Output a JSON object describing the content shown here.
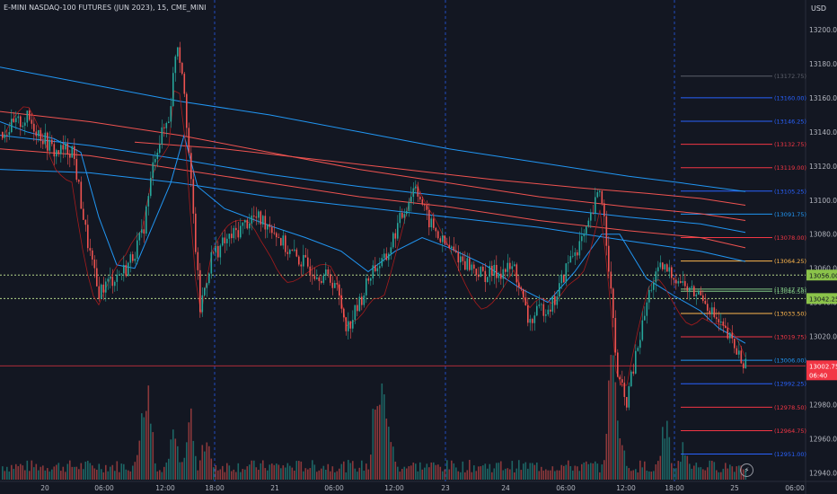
{
  "header": {
    "title": "E-MINI NASDAQ-100 FUTURES (JUN 2023), 15, CME_MINI",
    "currency": "USD"
  },
  "chart_data": {
    "type": "candlestick",
    "symbol": "E-MINI NASDAQ-100 FUTURES (JUN 2023)",
    "interval": "15",
    "exchange": "CME_MINI",
    "ylim": [
      12936,
      13210
    ],
    "price_ticks": [
      13200.0,
      13180.0,
      13160.0,
      13140.0,
      13120.0,
      13100.0,
      13080.0,
      13060.0,
      13040.0,
      13020.0,
      13000.0,
      12980.0,
      12960.0,
      12940.0
    ],
    "time_ticks": [
      "20",
      "06:00",
      "12:00",
      "18:00",
      "21",
      "06:00",
      "12:00",
      "23",
      "24",
      "06:00",
      "12:00",
      "18:00",
      "25",
      "06:00"
    ],
    "session_separators": [
      "18:00",
      "23",
      "18:00"
    ],
    "horizontal_levels": [
      {
        "label": "(13172.75)",
        "price": 13172.75,
        "color": "#5d606b"
      },
      {
        "label": "(13160.00)",
        "price": 13160.0,
        "color": "#2962ff"
      },
      {
        "label": "(13146.25)",
        "price": 13146.25,
        "color": "#2962ff"
      },
      {
        "label": "(13132.75)",
        "price": 13132.75,
        "color": "#f23645"
      },
      {
        "label": "(13119.00)",
        "price": 13119.0,
        "color": "#f23645"
      },
      {
        "label": "(13105.25)",
        "price": 13105.25,
        "color": "#2962ff"
      },
      {
        "label": "(13091.75)",
        "price": 13091.75,
        "color": "#2196f3"
      },
      {
        "label": "(13078.00)",
        "price": 13078.0,
        "color": "#f23645"
      },
      {
        "label": "(13064.25)",
        "price": 13064.25,
        "color": "#ffb74d"
      },
      {
        "label": "(13047.75)",
        "price": 13047.75,
        "color": "#81c784"
      },
      {
        "label": "(13046.50)",
        "price": 13046.5,
        "color": "#81c784"
      },
      {
        "label": "(13033.50)",
        "price": 13033.5,
        "color": "#ffb74d"
      },
      {
        "label": "(13019.75)",
        "price": 13019.75,
        "color": "#f23645"
      },
      {
        "label": "(13006.00)",
        "price": 13006.0,
        "color": "#2196f3"
      },
      {
        "label": "(12992.25)",
        "price": 12992.25,
        "color": "#2962ff"
      },
      {
        "label": "(12978.50)",
        "price": 12978.5,
        "color": "#f23645"
      },
      {
        "label": "(12964.75)",
        "price": 12964.75,
        "color": "#f23645"
      },
      {
        "label": "(12951.00)",
        "price": 12951.0,
        "color": "#2962ff"
      }
    ],
    "dotted_levels": [
      {
        "label": "13056.00",
        "price": 13056.0,
        "color": "#b5d68a"
      },
      {
        "label": "13042.25",
        "price": 13042.25,
        "color": "#b5d68a"
      }
    ],
    "last_price": {
      "label": "13002.75",
      "countdown": "06:40",
      "price": 13002.75,
      "color": "#f23645"
    },
    "moving_averages": [
      {
        "color": "#2196f3",
        "points": [
          [
            0,
            13178
          ],
          [
            60,
            13172
          ],
          [
            120,
            13166
          ],
          [
            200,
            13158
          ],
          [
            300,
            13150
          ],
          [
            400,
            13140
          ],
          [
            500,
            13130
          ],
          [
            600,
            13122
          ],
          [
            700,
            13114
          ],
          [
            760,
            13110
          ],
          [
            830,
            13105
          ]
        ]
      },
      {
        "color": "#ef5350",
        "points": [
          [
            150,
            13134
          ],
          [
            250,
            13130
          ],
          [
            350,
            13124
          ],
          [
            450,
            13118
          ],
          [
            550,
            13112
          ],
          [
            650,
            13107
          ],
          [
            720,
            13104
          ],
          [
            780,
            13101
          ],
          [
            830,
            13097
          ]
        ]
      },
      {
        "color": "#ef5350",
        "points": [
          [
            0,
            13152
          ],
          [
            100,
            13146
          ],
          [
            200,
            13138
          ],
          [
            300,
            13128
          ],
          [
            400,
            13118
          ],
          [
            500,
            13110
          ],
          [
            600,
            13102
          ],
          [
            700,
            13096
          ],
          [
            780,
            13092
          ],
          [
            830,
            13088
          ]
        ]
      },
      {
        "color": "#2196f3",
        "points": [
          [
            0,
            13138
          ],
          [
            100,
            13132
          ],
          [
            200,
            13124
          ],
          [
            300,
            13115
          ],
          [
            400,
            13108
          ],
          [
            500,
            13102
          ],
          [
            600,
            13096
          ],
          [
            700,
            13090
          ],
          [
            780,
            13086
          ],
          [
            830,
            13081
          ]
        ]
      },
      {
        "color": "#ef5350",
        "points": [
          [
            0,
            13130
          ],
          [
            100,
            13126
          ],
          [
            200,
            13118
          ],
          [
            300,
            13110
          ],
          [
            400,
            13102
          ],
          [
            500,
            13096
          ],
          [
            600,
            13088
          ],
          [
            700,
            13082
          ],
          [
            780,
            13078
          ],
          [
            830,
            13072
          ]
        ]
      },
      {
        "color": "#2196f3",
        "points": [
          [
            0,
            13118
          ],
          [
            100,
            13116
          ],
          [
            200,
            13110
          ],
          [
            300,
            13102
          ],
          [
            400,
            13096
          ],
          [
            500,
            13090
          ],
          [
            600,
            13084
          ],
          [
            700,
            13076
          ],
          [
            780,
            13070
          ],
          [
            830,
            13064
          ]
        ]
      },
      {
        "color": "#2196f3",
        "points": [
          [
            0,
            13146
          ],
          [
            30,
            13140
          ],
          [
            60,
            13136
          ],
          [
            90,
            13128
          ],
          [
            110,
            13090
          ],
          [
            130,
            13062
          ],
          [
            150,
            13060
          ],
          [
            170,
            13085
          ],
          [
            190,
            13110
          ],
          [
            205,
            13138
          ],
          [
            220,
            13108
          ],
          [
            250,
            13095
          ],
          [
            300,
            13085
          ],
          [
            340,
            13078
          ],
          [
            380,
            13070
          ],
          [
            410,
            13058
          ],
          [
            440,
            13070
          ],
          [
            470,
            13078
          ],
          [
            500,
            13072
          ],
          [
            540,
            13062
          ],
          [
            580,
            13048
          ],
          [
            610,
            13040
          ],
          [
            640,
            13058
          ],
          [
            670,
            13080
          ],
          [
            690,
            13080
          ],
          [
            720,
            13054
          ],
          [
            750,
            13044
          ],
          [
            780,
            13035
          ],
          [
            800,
            13025
          ],
          [
            830,
            13016
          ]
        ]
      }
    ]
  },
  "footer": {
    "bolt": "⚡"
  }
}
